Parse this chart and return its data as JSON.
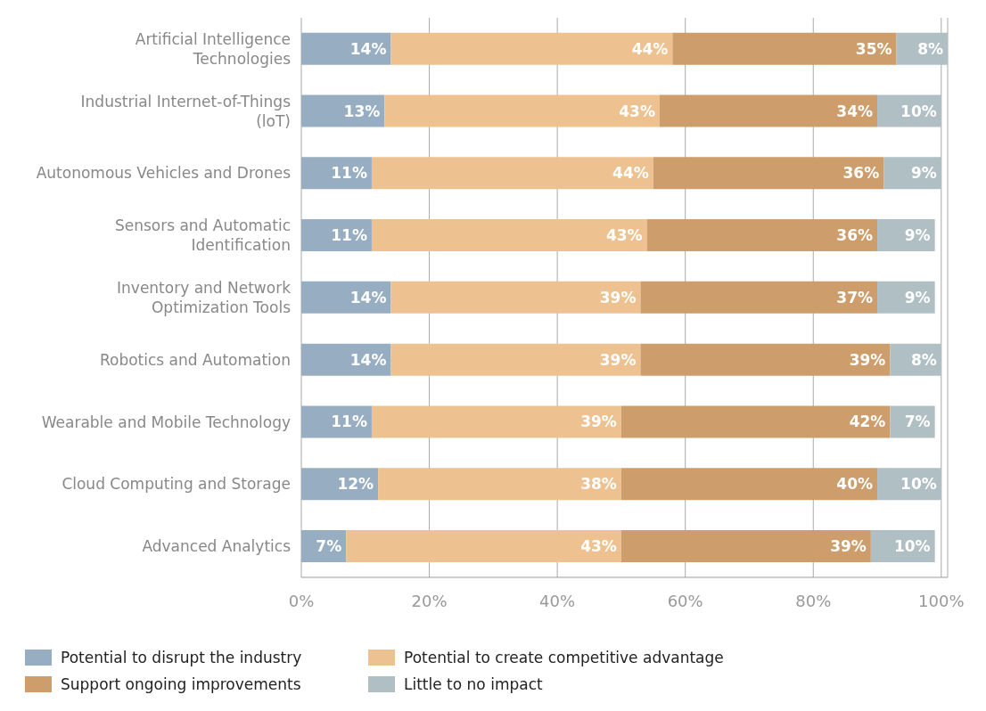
{
  "chart_data": {
    "type": "bar",
    "orientation": "horizontal",
    "stacked": true,
    "grid": "x",
    "legend": "bottom",
    "categories": [
      "Artificial Intelligence Technologies",
      "Industrial Internet-of-Things (loT)",
      "Autonomous Vehicles and Drones",
      "Sensors and Automatic Identification",
      "Inventory and Network Optimization Tools",
      "Robotics and Automation",
      "Wearable and Mobile Technology",
      "Cloud Computing and Storage",
      "Advanced Analytics"
    ],
    "xlim": [
      0,
      101
    ],
    "xticks": [
      {
        "value": 0,
        "label": "0%"
      },
      {
        "value": 20,
        "label": "20%"
      },
      {
        "value": 40,
        "label": "40%"
      },
      {
        "value": 60,
        "label": "60%"
      },
      {
        "value": 80,
        "label": "80%"
      },
      {
        "value": 100,
        "label": "100%"
      }
    ],
    "series": [
      {
        "name": "Potential to disrupt the industry",
        "color": "#97aec2",
        "values": [
          14,
          13,
          11,
          11,
          14,
          14,
          11,
          12,
          7
        ],
        "value_labels": [
          "14%",
          "13%",
          "11%",
          "11%",
          "14%",
          "14%",
          "11%",
          "12%",
          "7%"
        ]
      },
      {
        "name": "Potential to create competitive advantage",
        "color": "#eec290",
        "values": [
          44,
          43,
          44,
          43,
          39,
          39,
          39,
          38,
          43
        ],
        "value_labels": [
          "44%",
          "43%",
          "44%",
          "43%",
          "39%",
          "39%",
          "39%",
          "38%",
          "43%"
        ]
      },
      {
        "name": "Support ongoing improvements",
        "color": "#cd9e6b",
        "values": [
          35,
          34,
          36,
          36,
          37,
          39,
          42,
          40,
          39
        ],
        "value_labels": [
          "35%",
          "34%",
          "36%",
          "36%",
          "37%",
          "39%",
          "42%",
          "40%",
          "39%"
        ]
      },
      {
        "name": "Little to no impact",
        "color": "#b0bfc4",
        "values": [
          8,
          10,
          9,
          9,
          9,
          8,
          7,
          10,
          10
        ],
        "value_labels": [
          "8%",
          "10%",
          "9%",
          "9%",
          "9%",
          "8%",
          "7%",
          "10%",
          "10%"
        ]
      }
    ]
  }
}
